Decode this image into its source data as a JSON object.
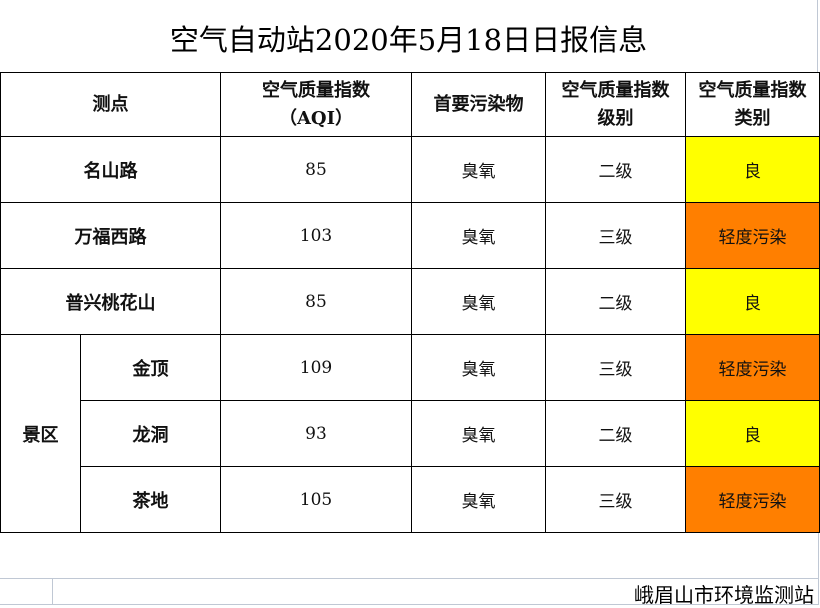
{
  "title": "空气自动站2020年5月18日日报信息",
  "headers": {
    "station": "测点",
    "aqi_line1": "空气质量指数",
    "aqi_line2": "（AQI）",
    "pollutant": "首要污染物",
    "level_line1": "空气质量指数",
    "level_line2": "级别",
    "category_line1": "空气质量指数",
    "category_line2": "类别"
  },
  "scenic_group": "景区",
  "rows": [
    {
      "station": "名山路",
      "aqi": "85",
      "pollutant": "臭氧",
      "level": "二级",
      "category": "良"
    },
    {
      "station": "万福西路",
      "aqi": "103",
      "pollutant": "臭氧",
      "level": "三级",
      "category": "轻度污染"
    },
    {
      "station": "普兴桃花山",
      "aqi": "85",
      "pollutant": "臭氧",
      "level": "二级",
      "category": "良"
    },
    {
      "station": "金顶",
      "aqi": "109",
      "pollutant": "臭氧",
      "level": "三级",
      "category": "轻度污染"
    },
    {
      "station": "龙洞",
      "aqi": "93",
      "pollutant": "臭氧",
      "level": "二级",
      "category": "良"
    },
    {
      "station": "茶地",
      "aqi": "105",
      "pollutant": "臭氧",
      "level": "三级",
      "category": "轻度污染"
    }
  ],
  "colors": {
    "good": "#ffff00",
    "light_pollution": "#ff7f00"
  },
  "footer": "峨眉山市环境监测站"
}
